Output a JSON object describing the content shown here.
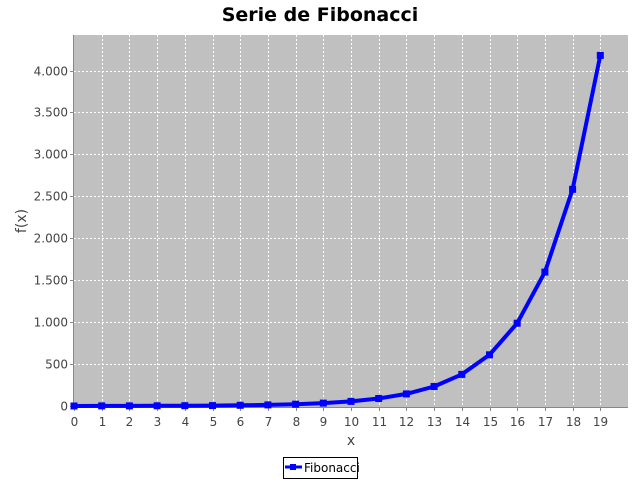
{
  "chart_data": {
    "type": "line",
    "title": "Serie de Fibonacci",
    "xlabel": "x",
    "ylabel": "f(x)",
    "xlim": [
      0,
      20
    ],
    "ylim": [
      0,
      4400
    ],
    "x_ticks": [
      0,
      1,
      2,
      3,
      4,
      5,
      6,
      7,
      8,
      9,
      10,
      11,
      12,
      13,
      14,
      15,
      16,
      17,
      18,
      19
    ],
    "y_ticks": [
      {
        "value": 0,
        "label": "0"
      },
      {
        "value": 500,
        "label": "500"
      },
      {
        "value": 1000,
        "label": "1.000"
      },
      {
        "value": 1500,
        "label": "1.500"
      },
      {
        "value": 2000,
        "label": "2.000"
      },
      {
        "value": 2500,
        "label": "2.500"
      },
      {
        "value": 3000,
        "label": "3.000"
      },
      {
        "value": 3500,
        "label": "3.500"
      },
      {
        "value": 4000,
        "label": "4.000"
      }
    ],
    "grid": true,
    "legend_position": "bottom-center",
    "plot_background": "#c0c0c0",
    "series": [
      {
        "name": "Fibonacci",
        "color": "#0000ff",
        "marker": "square",
        "x": [
          0,
          1,
          2,
          3,
          4,
          5,
          6,
          7,
          8,
          9,
          10,
          11,
          12,
          13,
          14,
          15,
          16,
          17,
          18,
          19
        ],
        "y": [
          0,
          1,
          1,
          2,
          3,
          5,
          8,
          13,
          21,
          34,
          55,
          89,
          144,
          233,
          377,
          610,
          987,
          1597,
          2584,
          4181
        ]
      }
    ]
  }
}
